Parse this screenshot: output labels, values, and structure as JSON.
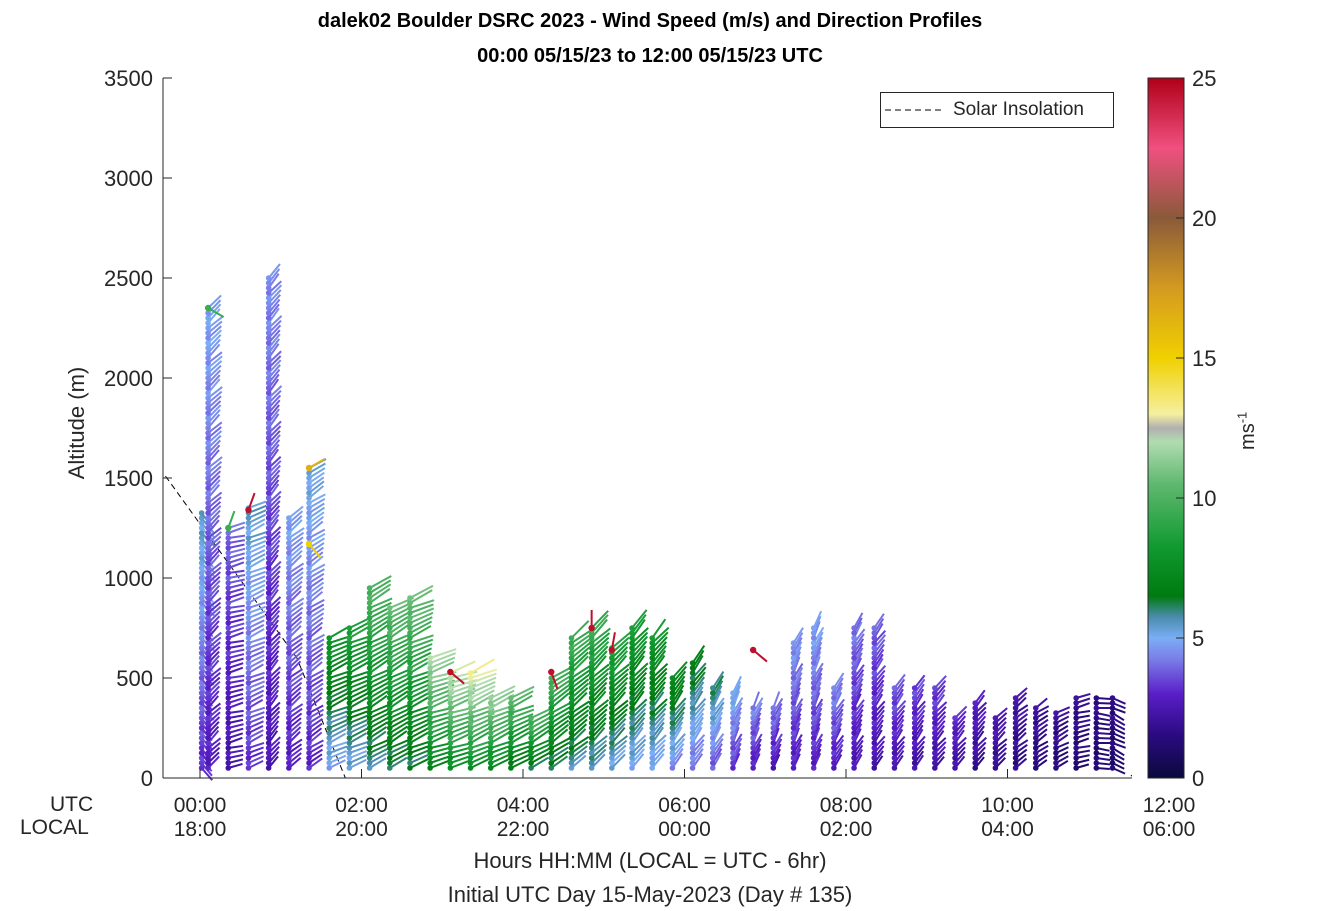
{
  "title_line1": "dalek02 Boulder DSRC 2023 - Wind Speed (m/s) and Direction Profiles",
  "title_line2": "00:00 05/15/23 to 12:00 05/15/23  UTC",
  "ylabel": "Altitude (m)",
  "xlabel_line1": "Hours HH:MM  (LOCAL = UTC - 6hr)",
  "xlabel_line2": "Initial UTC Day 15-May-2023 (Day # 135)",
  "utc_row_label": "UTC",
  "local_row_label": "LOCAL",
  "colorbar_label": "ms",
  "colorbar_label_exp": "-1",
  "legend_label": "Solar Insolation",
  "chart_data": {
    "type": "wind-barb-profile",
    "title": "dalek02 Boulder DSRC 2023 - Wind Speed (m/s) and Direction Profiles",
    "xlim": [
      0,
      12
    ],
    "ylim": [
      0,
      3500
    ],
    "y_ticks": [
      0,
      500,
      1000,
      1500,
      2000,
      2500,
      3000,
      3500
    ],
    "x_ticks_utc": [
      "00:00",
      "02:00",
      "04:00",
      "06:00",
      "08:00",
      "10:00",
      "12:00"
    ],
    "x_ticks_local": [
      "18:00",
      "20:00",
      "22:00",
      "00:00",
      "02:00",
      "04:00",
      "06:00"
    ],
    "x_tick_hours": [
      0,
      2,
      4,
      6,
      8,
      10,
      12
    ],
    "colorbar": {
      "min": 0,
      "max": 25,
      "ticks": [
        0,
        5,
        10,
        15,
        20,
        25
      ],
      "units": "ms-1"
    },
    "solar_insolation": {
      "x": [
        -0.5,
        1.2,
        1.8,
        11.5,
        11.8,
        12.5
      ],
      "y": [
        1550,
        600,
        0,
        0,
        100,
        250
      ]
    },
    "profiles": [
      {
        "t": 0.02,
        "top": 1340,
        "s": 4.0,
        "d": 315
      },
      {
        "t": 0.1,
        "top": 2350,
        "s": 3.5,
        "d": 220
      },
      {
        "t": 0.35,
        "top": 1250,
        "s": 2.8,
        "d": 250
      },
      {
        "t": 0.6,
        "top": 1350,
        "s": 4.0,
        "d": 240
      },
      {
        "t": 0.85,
        "top": 2500,
        "s": 3.2,
        "d": 215
      },
      {
        "t": 1.1,
        "top": 1300,
        "s": 3.5,
        "d": 225
      },
      {
        "t": 1.35,
        "top": 1550,
        "s": 3.8,
        "d": 230
      },
      {
        "t": 1.6,
        "top": 700,
        "s": 6.0,
        "d": 240
      },
      {
        "t": 1.85,
        "top": 750,
        "s": 6.5,
        "d": 240
      },
      {
        "t": 2.1,
        "top": 950,
        "s": 7.5,
        "d": 235
      },
      {
        "t": 2.35,
        "top": 850,
        "s": 7.8,
        "d": 235
      },
      {
        "t": 2.6,
        "top": 900,
        "s": 8.0,
        "d": 240
      },
      {
        "t": 2.85,
        "top": 600,
        "s": 9.0,
        "d": 245
      },
      {
        "t": 3.1,
        "top": 530,
        "s": 9.5,
        "d": 245
      },
      {
        "t": 3.35,
        "top": 530,
        "s": 9.8,
        "d": 240
      },
      {
        "t": 3.6,
        "top": 420,
        "s": 9.0,
        "d": 240
      },
      {
        "t": 3.85,
        "top": 420,
        "s": 8.0,
        "d": 240
      },
      {
        "t": 4.1,
        "top": 300,
        "s": 7.5,
        "d": 235
      },
      {
        "t": 4.35,
        "top": 520,
        "s": 7.5,
        "d": 230
      },
      {
        "t": 4.6,
        "top": 700,
        "s": 7.2,
        "d": 225
      },
      {
        "t": 4.85,
        "top": 750,
        "s": 7.0,
        "d": 220
      },
      {
        "t": 5.1,
        "top": 650,
        "s": 6.5,
        "d": 220
      },
      {
        "t": 5.35,
        "top": 750,
        "s": 6.2,
        "d": 215
      },
      {
        "t": 5.6,
        "top": 700,
        "s": 6.0,
        "d": 215
      },
      {
        "t": 5.85,
        "top": 500,
        "s": 5.5,
        "d": 210
      },
      {
        "t": 6.1,
        "top": 580,
        "s": 5.0,
        "d": 210
      },
      {
        "t": 6.35,
        "top": 450,
        "s": 4.5,
        "d": 205
      },
      {
        "t": 6.6,
        "top": 430,
        "s": 3.8,
        "d": 200
      },
      {
        "t": 6.85,
        "top": 360,
        "s": 3.2,
        "d": 200
      },
      {
        "t": 7.1,
        "top": 350,
        "s": 3.0,
        "d": 200
      },
      {
        "t": 7.35,
        "top": 690,
        "s": 3.4,
        "d": 200
      },
      {
        "t": 7.6,
        "top": 750,
        "s": 3.5,
        "d": 200
      },
      {
        "t": 7.85,
        "top": 450,
        "s": 3.2,
        "d": 205
      },
      {
        "t": 8.1,
        "top": 750,
        "s": 3.0,
        "d": 205
      },
      {
        "t": 8.35,
        "top": 750,
        "s": 2.8,
        "d": 210
      },
      {
        "t": 8.6,
        "top": 450,
        "s": 2.7,
        "d": 210
      },
      {
        "t": 8.85,
        "top": 450,
        "s": 2.5,
        "d": 210
      },
      {
        "t": 9.1,
        "top": 450,
        "s": 2.5,
        "d": 215
      },
      {
        "t": 9.35,
        "top": 320,
        "s": 2.3,
        "d": 215
      },
      {
        "t": 9.6,
        "top": 380,
        "s": 2.0,
        "d": 215
      },
      {
        "t": 9.85,
        "top": 300,
        "s": 1.8,
        "d": 220
      },
      {
        "t": 10.1,
        "top": 400,
        "s": 1.6,
        "d": 225
      },
      {
        "t": 10.35,
        "top": 350,
        "s": 1.4,
        "d": 230
      },
      {
        "t": 10.6,
        "top": 330,
        "s": 1.3,
        "d": 235
      },
      {
        "t": 10.85,
        "top": 400,
        "s": 1.2,
        "d": 250
      },
      {
        "t": 11.1,
        "top": 400,
        "s": 1.1,
        "d": 270
      },
      {
        "t": 11.3,
        "top": 400,
        "s": 1.0,
        "d": 290
      }
    ],
    "spot_points": [
      {
        "t": 0.1,
        "y": 2350,
        "s": 9.5,
        "d": 300
      },
      {
        "t": 0.35,
        "y": 1250,
        "s": 9.5,
        "d": 200
      },
      {
        "t": 0.6,
        "y": 1340,
        "s": 24.5,
        "d": 200
      },
      {
        "t": 1.35,
        "y": 1550,
        "s": 16.5,
        "d": 240
      },
      {
        "t": 1.35,
        "y": 1170,
        "s": 15.0,
        "d": 320
      },
      {
        "t": 3.1,
        "y": 530,
        "s": 24.5,
        "d": 310
      },
      {
        "t": 4.35,
        "y": 530,
        "s": 24.5,
        "d": 340
      },
      {
        "t": 4.85,
        "y": 750,
        "s": 24.5,
        "d": 180
      },
      {
        "t": 5.1,
        "y": 640,
        "s": 24.5,
        "d": 190
      },
      {
        "t": 6.85,
        "y": 640,
        "s": 24.5,
        "d": 310
      }
    ]
  }
}
